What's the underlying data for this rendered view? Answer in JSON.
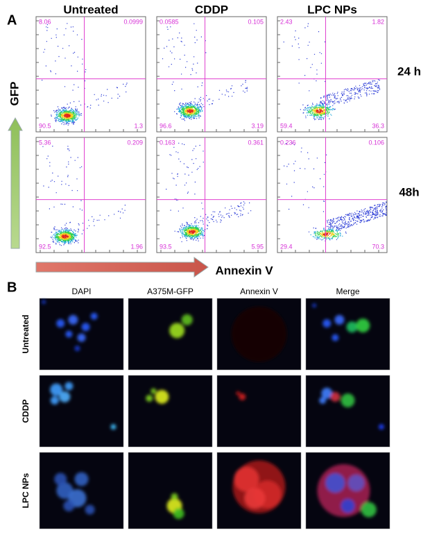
{
  "panel_a": {
    "label": "A",
    "columns": [
      "Untreated",
      "CDDP",
      "LPC NPs"
    ],
    "rows": [
      "24 h",
      "48h"
    ],
    "y_axis": "GFP",
    "x_axis": "Annexin V",
    "plots": [
      [
        {
          "ul": "8.06",
          "ur": "0.0999",
          "ll": "90.5",
          "lr": "1.3"
        },
        {
          "ul": "0.0585",
          "ur": "0.105",
          "ll": "96.6",
          "lr": "3.19"
        },
        {
          "ul": "2.43",
          "ur": "1.82",
          "ll": "59.4",
          "lr": "36.3"
        }
      ],
      [
        {
          "ul": "5.36",
          "ur": "0.209",
          "ll": "92.5",
          "lr": "1.96"
        },
        {
          "ul": "0.163",
          "ur": "0.361",
          "ll": "93.5",
          "lr": "5.95"
        },
        {
          "ul": "0.236",
          "ur": "0.106",
          "ll": "29.4",
          "lr": "70.3"
        }
      ]
    ]
  },
  "panel_b": {
    "label": "B",
    "columns": [
      "DAPI",
      "A375M-GFP",
      "Annexin V",
      "Merge"
    ],
    "rows": [
      "Untreated",
      "CDDP",
      "LPC NPs"
    ]
  }
}
